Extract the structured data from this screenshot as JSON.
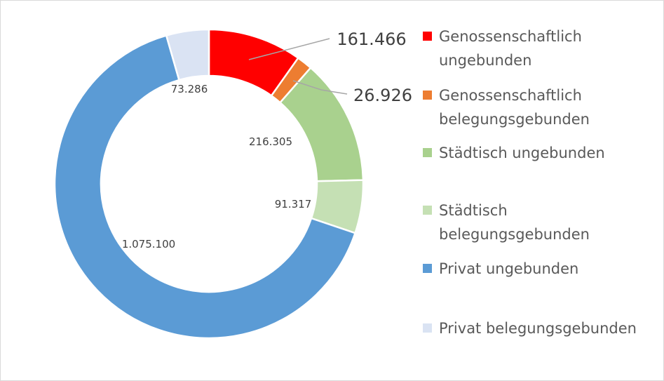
{
  "chart_data": {
    "type": "pie",
    "variant": "doughnut",
    "title": "",
    "categories": [
      "Genossenschaftlich ungebunden",
      "Genossenschaftlich belegungsgebunden",
      "Städtisch ungebunden",
      "Städtisch belegungsgebunden",
      "Privat ungebunden",
      "Privat belegungsgebunden"
    ],
    "legend_lines": [
      [
        "Genossenschaftlich",
        "ungebunden"
      ],
      [
        "Genossenschaftlich",
        "belegungsgebunden"
      ],
      [
        "Städtisch ungebunden"
      ],
      [
        "Städtisch",
        "belegungsgebunden"
      ],
      [
        "Privat ungebunden"
      ],
      [
        "Privat belegungsgebunden"
      ]
    ],
    "values": [
      161466,
      26926,
      216305,
      91317,
      1075100,
      73286
    ],
    "value_labels": [
      "161.466",
      "26.926",
      "216.305",
      "91.317",
      "1.075.100",
      "73.286"
    ],
    "colors": [
      "#ff0000",
      "#ed7d31",
      "#a9d18e",
      "#c5e0b4",
      "#5b9bd5",
      "#dae3f3"
    ],
    "legend_position": "right"
  }
}
